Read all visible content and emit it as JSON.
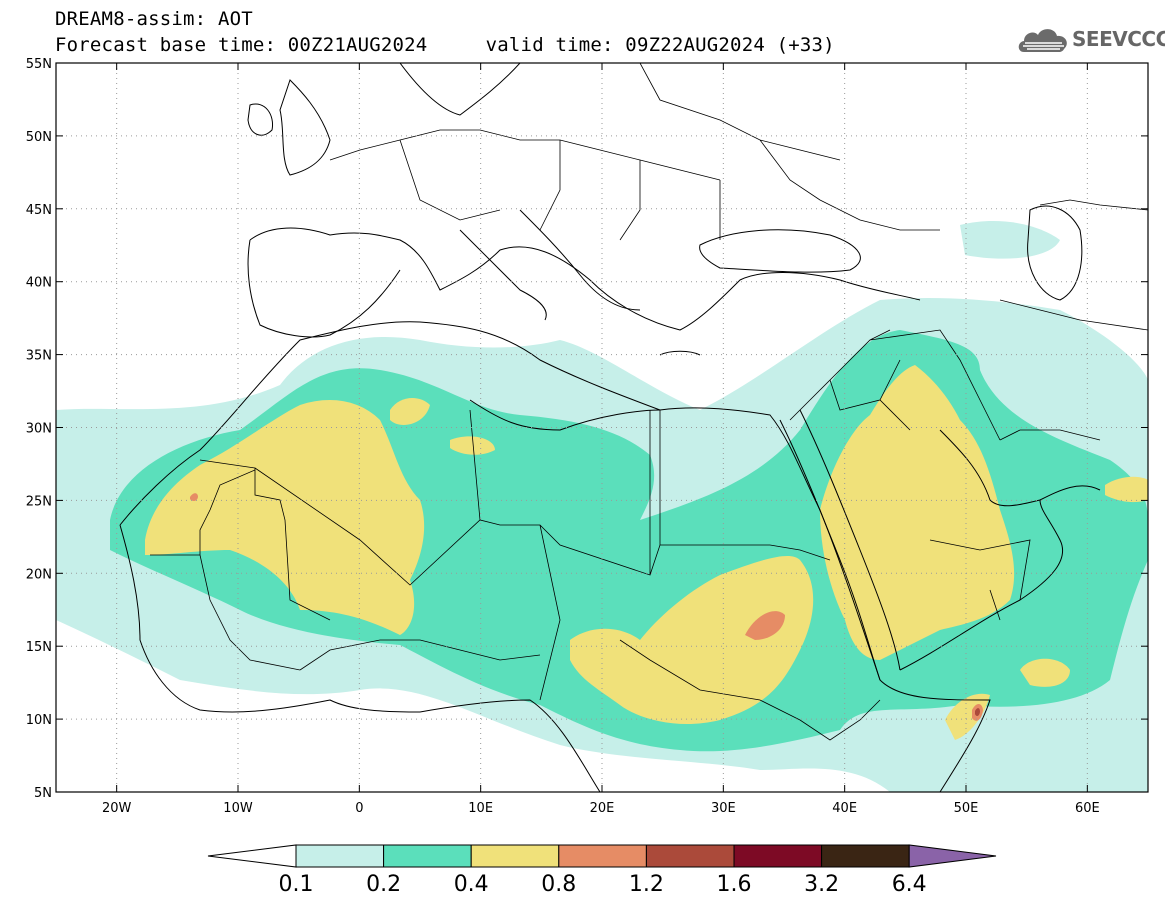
{
  "header": {
    "title_line1": "DREAM8-assim: AOT",
    "title_line2": "Forecast base time: 00Z21AUG2024     valid time: 09Z22AUG2024 (+33)"
  },
  "logo": {
    "text": "SEEVCCC",
    "icon": "cloud-icon"
  },
  "map": {
    "lon_range": [
      -25,
      65
    ],
    "lat_range": [
      5,
      55
    ],
    "lat_ticks": [
      {
        "value": 55,
        "label": "55N"
      },
      {
        "value": 50,
        "label": "50N"
      },
      {
        "value": 45,
        "label": "45N"
      },
      {
        "value": 40,
        "label": "40N"
      },
      {
        "value": 35,
        "label": "35N"
      },
      {
        "value": 30,
        "label": "30N"
      },
      {
        "value": 25,
        "label": "25N"
      },
      {
        "value": 20,
        "label": "20N"
      },
      {
        "value": 15,
        "label": "15N"
      },
      {
        "value": 10,
        "label": "10N"
      },
      {
        "value": 5,
        "label": "5N"
      }
    ],
    "lon_ticks": [
      {
        "value": -20,
        "label": "20W"
      },
      {
        "value": -10,
        "label": "10W"
      },
      {
        "value": 0,
        "label": "0"
      },
      {
        "value": 10,
        "label": "10E"
      },
      {
        "value": 20,
        "label": "20E"
      },
      {
        "value": 30,
        "label": "30E"
      },
      {
        "value": 40,
        "label": "40E"
      },
      {
        "value": 50,
        "label": "50E"
      },
      {
        "value": 60,
        "label": "60E"
      }
    ],
    "grid": true
  },
  "colorbar": {
    "labels": [
      "0.1",
      "0.2",
      "0.4",
      "0.8",
      "1.2",
      "1.6",
      "3.2",
      "6.4"
    ],
    "colors": [
      "#ffffff",
      "#c6efe9",
      "#5bdfbb",
      "#f0e17a",
      "#e68c65",
      "#ab4a3a",
      "#7d0a25",
      "#3a2514",
      "#8a63a8"
    ]
  }
}
